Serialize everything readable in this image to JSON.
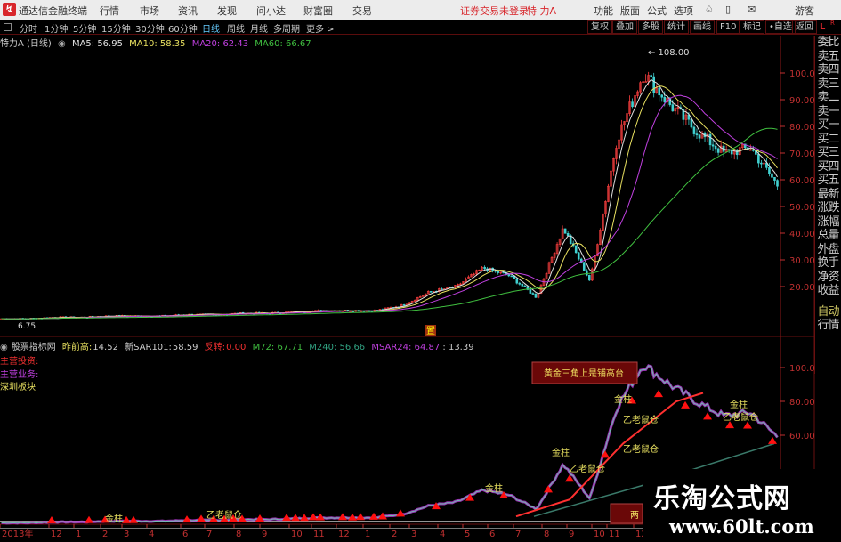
{
  "titlebar": {
    "app_name": "通达信金融终端",
    "menus": [
      "行情",
      "市场",
      "资讯",
      "发现",
      "问小达",
      "财富圈",
      "交易"
    ],
    "status": "证券交易未登录",
    "stock": "特 力A",
    "right_menus": [
      "功能",
      "版面",
      "公式",
      "选项"
    ],
    "user": "游客"
  },
  "toolbar": {
    "periods": [
      "分时",
      "1分钟",
      "5分钟",
      "15分钟",
      "30分钟",
      "60分钟",
      "日线",
      "周线",
      "月线",
      "多周期",
      "更多 >"
    ],
    "active_period": "日线",
    "buttons": [
      "复权",
      "叠加",
      "多股",
      "统计",
      "画线",
      "F10",
      "标记",
      "•自选",
      "返回"
    ]
  },
  "main_info": {
    "name": "特力A (日线)",
    "ma5": "MA5: 56.95",
    "ma10": "MA10: 58.35",
    "ma20": "MA20: 62.43",
    "ma60": "MA60: 66.67",
    "high_label": "108.00",
    "low_label": "6.75",
    "marker": "置"
  },
  "price_axis": [
    "100.0",
    "90.00",
    "80.00",
    "70.00",
    "60.00",
    "50.00",
    "40.00",
    "30.00",
    "20.00"
  ],
  "right_panel": [
    "委比",
    "卖五",
    "卖四",
    "卖三",
    "卖二",
    "卖一",
    "买一",
    "买二",
    "买三",
    "买四",
    "买五",
    "最新",
    "涨跌",
    "涨幅",
    "总量",
    "外盘",
    "换手",
    "净资",
    "收益"
  ],
  "right_panel_lower": [
    "自动",
    "行情"
  ],
  "indicator_info": {
    "name": "股票指标网",
    "prev_high_label": "昨前高:",
    "prev_high": "14.52",
    "sar_label": "新SAR101:",
    "sar": "58.59",
    "reverse_label": "反转:",
    "reverse": "0.00",
    "m72": "M72: 67.71",
    "m240": "M240: 56.66",
    "msar24": "MSAR24: 64.87",
    "last": ": 13.39"
  },
  "indicator_side": {
    "invest": "主营投资:",
    "business": "主营业务:",
    "sector": "深圳板块"
  },
  "indicator_axis": [
    "100.0",
    "80.00",
    "60.00"
  ],
  "indicator_box": "黄金三角上是铺高台",
  "indicator_box2": "两",
  "signal_labels": [
    "金柱",
    "乙老鼠仓",
    "金柱",
    "乙老鼠仓",
    "金柱",
    "乙老鼠仓",
    "乙老鼠仓",
    "金柱",
    "金柱",
    "乙老鼠仓"
  ],
  "date_axis": [
    "2013年",
    "12",
    "1",
    "2",
    "3",
    "4",
    "6",
    "7",
    "8",
    "9",
    "10",
    "11",
    "12",
    "1",
    "2",
    "3",
    "4",
    "5",
    "6",
    "7",
    "8",
    "9",
    "10",
    "11",
    "12"
  ],
  "watermark": {
    "name": "乐淘公式网",
    "url": "www.60lt.com"
  },
  "colors": {
    "ma5": "#e0e0e0",
    "ma10": "#e8e060",
    "ma20": "#c040e0",
    "ma60": "#40c040",
    "up": "#ff4040",
    "axis": "#c03030",
    "brand": "#d8262b"
  },
  "chart_data": {
    "type": "candlestick",
    "close_samples": [
      8,
      8,
      8.5,
      8.5,
      9,
      9,
      9,
      9.5,
      9.5,
      10,
      10,
      10.5,
      11,
      11,
      11,
      13,
      18,
      20,
      27,
      24,
      16,
      42,
      22,
      75,
      100,
      88,
      78,
      70,
      72,
      58
    ],
    "ylim": [
      0,
      110
    ],
    "high": 108.0,
    "low": 6.75
  }
}
